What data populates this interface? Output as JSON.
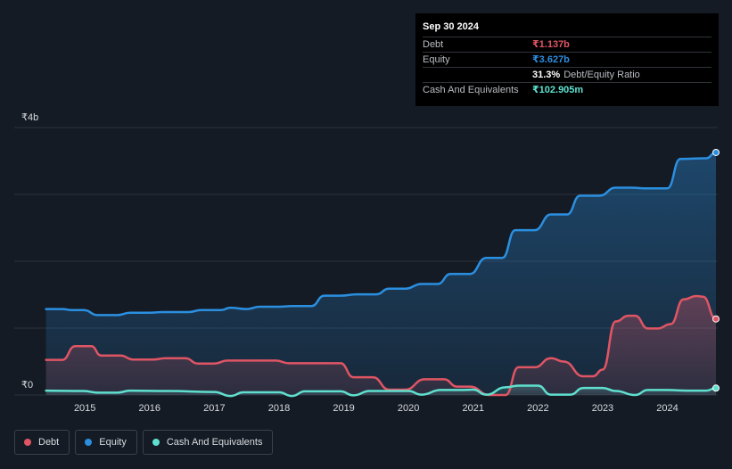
{
  "tooltip": {
    "date": "Sep 30 2024",
    "debt_label": "Debt",
    "debt_value": "₹1.137b",
    "equity_label": "Equity",
    "equity_value": "₹3.627b",
    "ratio_value": "31.3%",
    "ratio_label": "Debt/Equity Ratio",
    "cash_label": "Cash And Equivalents",
    "cash_value": "₹102.905m"
  },
  "legend": {
    "debt": "Debt",
    "equity": "Equity",
    "cash": "Cash And Equivalents"
  },
  "colors": {
    "debt": "#e05564",
    "equity": "#2b8fe0",
    "cash": "#5fe0cf",
    "background": "#151b24",
    "grid": "#2d333c"
  },
  "chart_data": {
    "type": "area",
    "title": "",
    "xlabel": "",
    "ylabel": "",
    "ylim": [
      0,
      4000
    ],
    "y_tick_labels": [
      {
        "value": 4000,
        "label": "₹4b"
      },
      {
        "value": 0,
        "label": "₹0"
      }
    ],
    "gridlines": [
      0,
      1000,
      2000,
      3000,
      4000
    ],
    "x_ticks": [
      2015,
      2016,
      2017,
      2018,
      2019,
      2020,
      2021,
      2022,
      2023,
      2024
    ],
    "xlim": [
      2014.35,
      2024.75
    ],
    "series": [
      {
        "name": "Equity",
        "key": "equity",
        "unit": "₹m",
        "points": [
          [
            2014.4,
            1285
          ],
          [
            2014.65,
            1285
          ],
          [
            2014.8,
            1270
          ],
          [
            2014.98,
            1270
          ],
          [
            2015.2,
            1195
          ],
          [
            2015.5,
            1195
          ],
          [
            2015.7,
            1230
          ],
          [
            2016.0,
            1230
          ],
          [
            2016.2,
            1240
          ],
          [
            2016.6,
            1240
          ],
          [
            2016.8,
            1270
          ],
          [
            2017.1,
            1270
          ],
          [
            2017.25,
            1305
          ],
          [
            2017.5,
            1285
          ],
          [
            2017.7,
            1320
          ],
          [
            2018.0,
            1320
          ],
          [
            2018.2,
            1330
          ],
          [
            2018.5,
            1330
          ],
          [
            2018.7,
            1485
          ],
          [
            2018.95,
            1485
          ],
          [
            2019.2,
            1505
          ],
          [
            2019.5,
            1505
          ],
          [
            2019.7,
            1590
          ],
          [
            2019.95,
            1590
          ],
          [
            2020.2,
            1660
          ],
          [
            2020.45,
            1660
          ],
          [
            2020.65,
            1810
          ],
          [
            2020.95,
            1810
          ],
          [
            2021.2,
            2050
          ],
          [
            2021.45,
            2050
          ],
          [
            2021.65,
            2465
          ],
          [
            2021.95,
            2465
          ],
          [
            2022.2,
            2700
          ],
          [
            2022.45,
            2700
          ],
          [
            2022.65,
            2980
          ],
          [
            2022.95,
            2980
          ],
          [
            2023.2,
            3100
          ],
          [
            2023.45,
            3100
          ],
          [
            2023.65,
            3090
          ],
          [
            2024.0,
            3090
          ],
          [
            2024.2,
            3530
          ],
          [
            2024.6,
            3540
          ],
          [
            2024.75,
            3627
          ]
        ]
      },
      {
        "name": "Debt",
        "key": "debt",
        "unit": "₹m",
        "points": [
          [
            2014.4,
            525
          ],
          [
            2014.65,
            525
          ],
          [
            2014.85,
            730
          ],
          [
            2015.1,
            730
          ],
          [
            2015.25,
            590
          ],
          [
            2015.55,
            590
          ],
          [
            2015.75,
            530
          ],
          [
            2016.05,
            530
          ],
          [
            2016.25,
            550
          ],
          [
            2016.55,
            550
          ],
          [
            2016.75,
            470
          ],
          [
            2017.0,
            470
          ],
          [
            2017.2,
            515
          ],
          [
            2017.95,
            515
          ],
          [
            2018.15,
            475
          ],
          [
            2018.95,
            475
          ],
          [
            2019.15,
            265
          ],
          [
            2019.45,
            265
          ],
          [
            2019.7,
            80
          ],
          [
            2019.95,
            80
          ],
          [
            2020.25,
            235
          ],
          [
            2020.55,
            235
          ],
          [
            2020.75,
            125
          ],
          [
            2020.95,
            125
          ],
          [
            2021.25,
            0
          ],
          [
            2021.5,
            0
          ],
          [
            2021.7,
            415
          ],
          [
            2021.95,
            415
          ],
          [
            2022.2,
            550
          ],
          [
            2022.4,
            500
          ],
          [
            2022.7,
            280
          ],
          [
            2022.85,
            280
          ],
          [
            2023.0,
            380
          ],
          [
            2023.2,
            1100
          ],
          [
            2023.4,
            1185
          ],
          [
            2023.5,
            1185
          ],
          [
            2023.7,
            995
          ],
          [
            2023.85,
            995
          ],
          [
            2024.05,
            1060
          ],
          [
            2024.25,
            1430
          ],
          [
            2024.45,
            1480
          ],
          [
            2024.55,
            1470
          ],
          [
            2024.75,
            1137
          ]
        ]
      },
      {
        "name": "Cash And Equivalents",
        "key": "cash",
        "unit": "₹m",
        "points": [
          [
            2014.4,
            65
          ],
          [
            2014.98,
            60
          ],
          [
            2015.2,
            35
          ],
          [
            2015.5,
            35
          ],
          [
            2015.7,
            65
          ],
          [
            2016.3,
            60
          ],
          [
            2017.0,
            45
          ],
          [
            2017.25,
            -15
          ],
          [
            2017.45,
            40
          ],
          [
            2018.0,
            40
          ],
          [
            2018.2,
            -15
          ],
          [
            2018.4,
            55
          ],
          [
            2018.95,
            55
          ],
          [
            2019.15,
            -5
          ],
          [
            2019.4,
            60
          ],
          [
            2020.0,
            60
          ],
          [
            2020.2,
            5
          ],
          [
            2020.5,
            75
          ],
          [
            2020.8,
            75
          ],
          [
            2021.0,
            80
          ],
          [
            2021.2,
            5
          ],
          [
            2021.5,
            115
          ],
          [
            2021.7,
            140
          ],
          [
            2022.0,
            140
          ],
          [
            2022.2,
            5
          ],
          [
            2022.5,
            5
          ],
          [
            2022.7,
            105
          ],
          [
            2023.0,
            105
          ],
          [
            2023.2,
            60
          ],
          [
            2023.5,
            0
          ],
          [
            2023.7,
            75
          ],
          [
            2024.0,
            75
          ],
          [
            2024.3,
            65
          ],
          [
            2024.6,
            65
          ],
          [
            2024.75,
            103
          ]
        ]
      }
    ]
  }
}
